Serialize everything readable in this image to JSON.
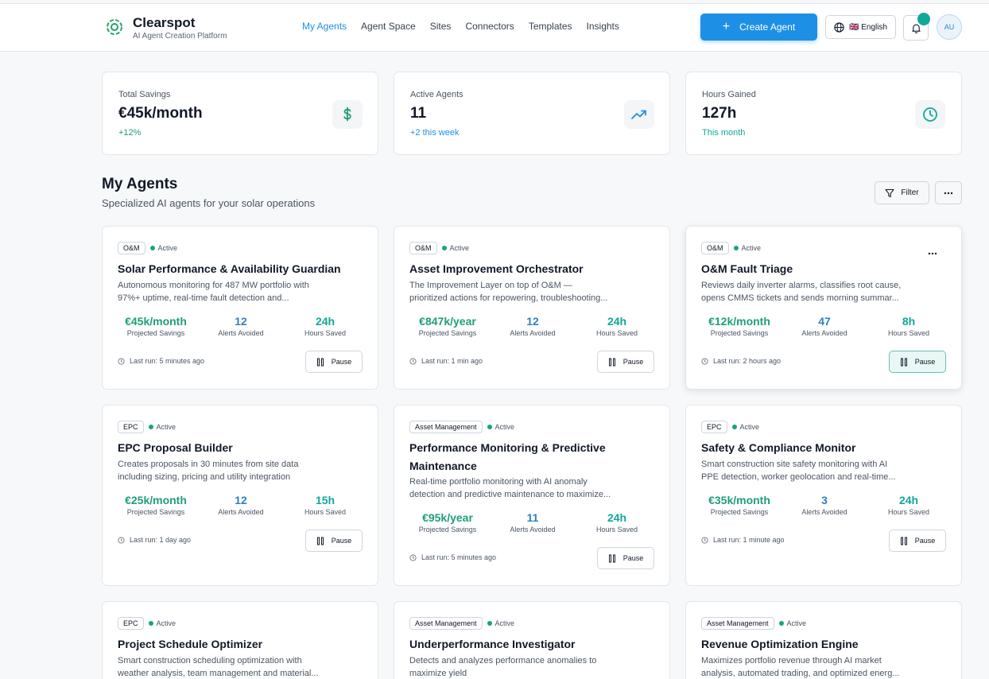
{
  "header": {
    "brand_name": "Clearspot",
    "brand_sub": "AI Agent Creation Platform",
    "nav": [
      "My Agents",
      "Agent Space",
      "Sites",
      "Connectors",
      "Templates",
      "Insights"
    ],
    "active_nav": "My Agents",
    "create_label": "Create Agent",
    "language_label": "🇬🇧 English",
    "avatar_initials": "AU"
  },
  "stats": [
    {
      "label": "Total Savings",
      "value": "€45k/month",
      "delta": "+12%",
      "icon": "dollar-icon"
    },
    {
      "label": "Active Agents",
      "value": "11",
      "delta": "+2 this week",
      "icon": "trending-up-icon"
    },
    {
      "label": "Hours Gained",
      "value": "127h",
      "delta": "This month",
      "icon": "clock-icon"
    }
  ],
  "section": {
    "title": "My Agents",
    "subtitle": "Specialized AI agents for your solar operations",
    "filter_label": "Filter"
  },
  "labels": {
    "projected_savings": "Projected Savings",
    "alerts_avoided": "Alerts Avoided",
    "hours_saved": "Hours Saved",
    "pause": "Pause"
  },
  "agents": [
    {
      "tag": "O&M",
      "status": "Active",
      "title": "Solar Performance & Availability Guardian",
      "desc1": "Autonomous monitoring for 487 MW portfolio with",
      "desc2": "97%+ uptime, real-time fault detection and...",
      "savings": "€45k/month",
      "alerts": "12",
      "hours": "24h",
      "last_run": "Last run: 5 minutes ago"
    },
    {
      "tag": "O&M",
      "status": "Active",
      "title": "Asset Improvement Orchestrator",
      "desc1": "The Improvement Layer on top of O&M —",
      "desc2": "prioritized actions for repowering, troubleshooting...",
      "savings": "€847k/year",
      "alerts": "12",
      "hours": "24h",
      "last_run": "Last run: 1 min ago"
    },
    {
      "tag": "O&M",
      "status": "Active",
      "title": "O&M Fault Triage",
      "desc1": "Reviews daily inverter alarms, classifies root cause,",
      "desc2": "opens CMMS tickets and sends morning summar...",
      "savings": "€12k/month",
      "alerts": "47",
      "hours": "8h",
      "last_run": "Last run: 2 hours ago"
    },
    {
      "tag": "EPC",
      "status": "Active",
      "title": "EPC Proposal Builder",
      "desc1": "Creates proposals in 30 minutes from site data",
      "desc2": "including sizing, pricing and utility integration",
      "savings": "€25k/month",
      "alerts": "12",
      "hours": "15h",
      "last_run": "Last run: 1 day ago"
    },
    {
      "tag": "Asset Management",
      "status": "Active",
      "title": "Performance Monitoring & Predictive Maintenance",
      "desc1": "Real-time portfolio monitoring with AI anomaly",
      "desc2": "detection and predictive maintenance to maximize...",
      "savings": "€95k/year",
      "alerts": "11",
      "hours": "24h",
      "last_run": "Last run: 5 minutes ago"
    },
    {
      "tag": "EPC",
      "status": "Active",
      "title": "Safety & Compliance Monitor",
      "desc1": "Smart construction site safety monitoring with AI",
      "desc2": "PPE detection, worker geolocation and real-time...",
      "savings": "€35k/month",
      "alerts": "3",
      "hours": "24h",
      "last_run": "Last run: 1 minute ago"
    },
    {
      "tag": "EPC",
      "status": "Active",
      "title": "Project Schedule Optimizer",
      "desc1": "Smart construction scheduling optimization with",
      "desc2": "weather analysis, team management and material..."
    },
    {
      "tag": "Asset Management",
      "status": "Active",
      "title": "Underperformance Investigator",
      "desc1": "Detects and analyzes performance anomalies to",
      "desc2": "maximize yield"
    },
    {
      "tag": "Asset Management",
      "status": "Active",
      "title": "Revenue Optimization Engine",
      "desc1": "Maximizes portfolio revenue through AI market",
      "desc2": "analysis, automated trading, and optimized energ..."
    }
  ],
  "colors": {
    "accent": "#1d90e6",
    "savings_green": "#1f9e78",
    "metric_blue": "#2f7fc3",
    "teal": "#11a89a"
  }
}
